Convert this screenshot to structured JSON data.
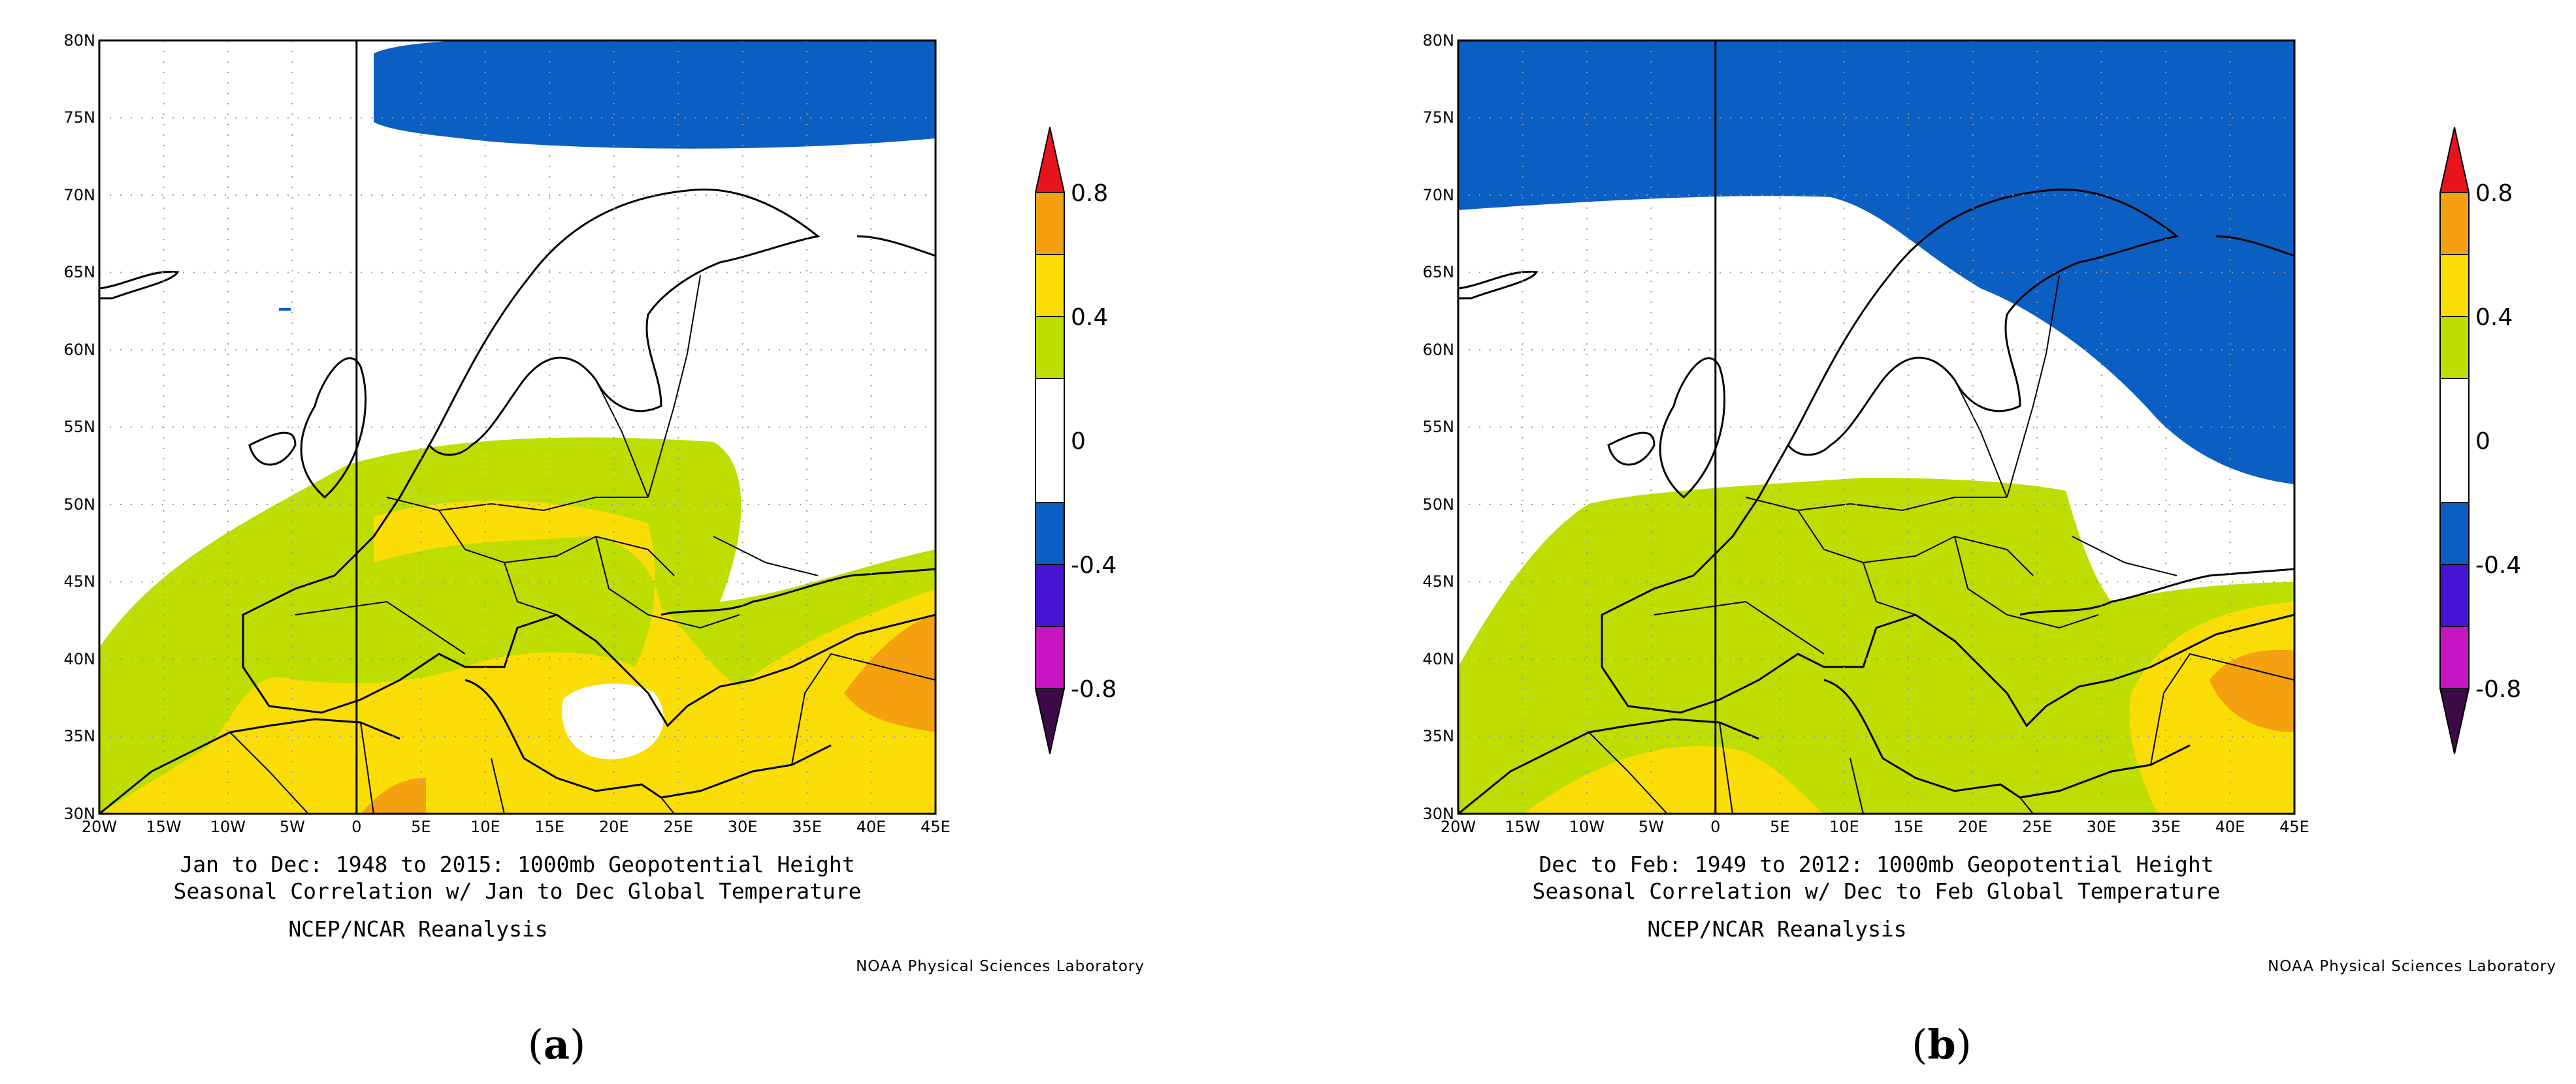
{
  "panels": [
    {
      "id": "a",
      "panel_label_letter": "a",
      "title_line1": "Jan to Dec: 1948 to 2015: 1000mb Geopotential Height",
      "title_line2": "Seasonal Correlation w/ Jan to Dec Global Temperature",
      "dataset": "NCEP/NCAR Reanalysis",
      "credit": "NOAA Physical Sciences Laboratory"
    },
    {
      "id": "b",
      "panel_label_letter": "b",
      "title_line1": "Dec to Feb: 1949 to 2012: 1000mb Geopotential Height",
      "title_line2": "Seasonal Correlation w/ Dec to Feb Global Temperature",
      "dataset": "NCEP/NCAR Reanalysis",
      "credit": "NOAA Physical Sciences Laboratory"
    }
  ],
  "map": {
    "lon_range": [
      -20,
      45
    ],
    "lat_range": [
      30,
      80
    ],
    "lon_ticks": [
      "20W",
      "15W",
      "10W",
      "5W",
      "0",
      "5E",
      "10E",
      "15E",
      "20E",
      "25E",
      "30E",
      "35E",
      "40E",
      "45E"
    ],
    "lat_ticks": [
      "30N",
      "35N",
      "40N",
      "45N",
      "50N",
      "55N",
      "60N",
      "65N",
      "70N",
      "75N",
      "80N"
    ],
    "grid": "dotted"
  },
  "colorbar": {
    "labels": [
      "0.8",
      "0.4",
      "0",
      "-0.4",
      "-0.8"
    ],
    "bins": [
      {
        "range": [
          0.8,
          1.0
        ],
        "color": "#e8141c"
      },
      {
        "range": [
          0.6,
          0.8
        ],
        "color": "#f5a00f"
      },
      {
        "range": [
          0.4,
          0.6
        ],
        "color": "#fadd05"
      },
      {
        "range": [
          0.2,
          0.4
        ],
        "color": "#bedd00"
      },
      {
        "range": [
          -0.2,
          0.2
        ],
        "color": "#ffffff"
      },
      {
        "range": [
          -0.4,
          -0.2
        ],
        "color": "#0b5fc3"
      },
      {
        "range": [
          -0.6,
          -0.4
        ],
        "color": "#4614d2"
      },
      {
        "range": [
          -0.8,
          -0.6
        ],
        "color": "#c814c3"
      },
      {
        "range": [
          -1.0,
          -0.8
        ],
        "color": "#3c0a46"
      }
    ]
  }
}
